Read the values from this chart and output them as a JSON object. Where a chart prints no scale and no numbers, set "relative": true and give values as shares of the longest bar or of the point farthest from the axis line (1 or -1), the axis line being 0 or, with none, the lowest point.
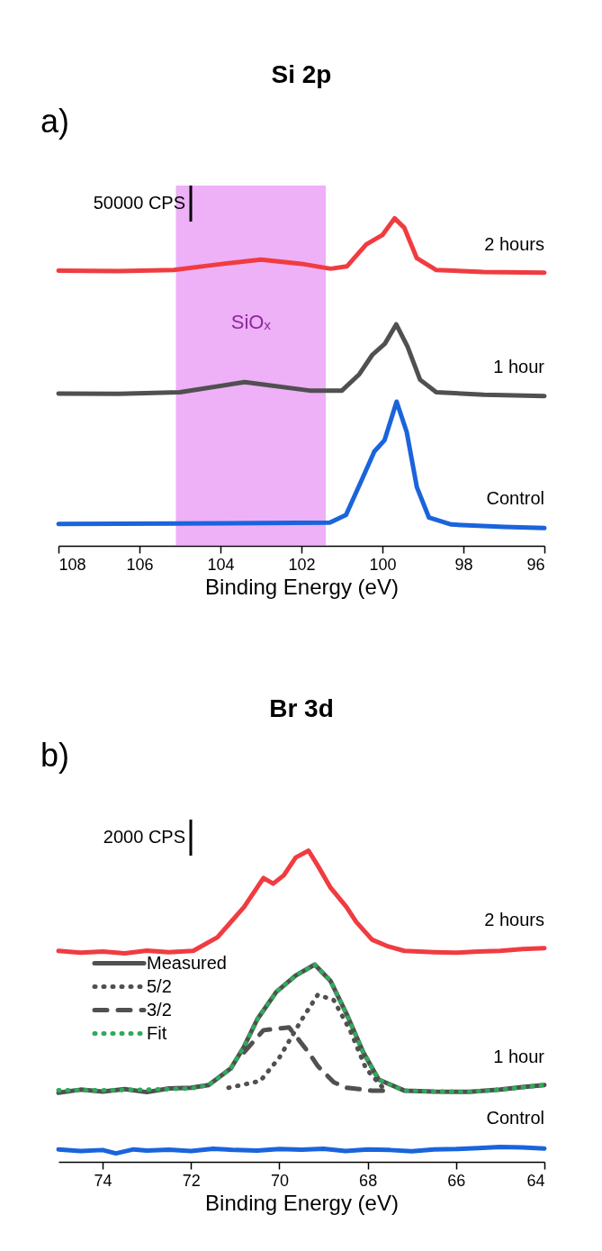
{
  "chart_data": [
    {
      "type": "line",
      "title": "Si 2p",
      "xlabel": "Binding Energy (eV)",
      "relative": true,
      "xlim": [
        108,
        96
      ],
      "xticks": [
        108,
        106,
        104,
        102,
        100,
        98,
        96
      ],
      "tick_labels": "x",
      "grid": false,
      "legend": false,
      "line_style": "solid",
      "annotations": [
        "a)",
        "50000 CPS",
        "2 hours",
        "1 hour",
        "Control"
      ],
      "bands": [
        {
          "axis": "x",
          "from": 105.1,
          "to": 101.4,
          "label": "SiOₓ",
          "color": "#e27cf2"
        }
      ],
      "series": [
        {
          "color": "#f03c40",
          "x": [
            108,
            106.5,
            105.15,
            104.2,
            103.0,
            102.0,
            101.28,
            100.88,
            100.4,
            100.0,
            99.7,
            99.46,
            99.15,
            98.67,
            97.5,
            96
          ],
          "values": [
            0.84,
            0.839,
            0.842,
            0.857,
            0.874,
            0.861,
            0.846,
            0.853,
            0.92,
            0.949,
            1.0,
            0.971,
            0.878,
            0.842,
            0.836,
            0.834
          ]
        },
        {
          "color": "#505050",
          "x": [
            108,
            106.5,
            105.0,
            103.4,
            101.8,
            101.0,
            100.57,
            100.25,
            99.94,
            99.66,
            99.38,
            99.07,
            98.67,
            97.5,
            96
          ],
          "values": [
            0.465,
            0.464,
            0.469,
            0.5,
            0.474,
            0.474,
            0.524,
            0.583,
            0.617,
            0.676,
            0.608,
            0.507,
            0.469,
            0.461,
            0.457
          ]
        },
        {
          "color": "#1a64dc",
          "x": [
            108,
            105,
            101.3,
            100.9,
            100.5,
            100.2,
            99.95,
            99.65,
            99.4,
            99.15,
            98.85,
            98.3,
            97,
            96
          ],
          "values": [
            0.067,
            0.068,
            0.071,
            0.094,
            0.204,
            0.288,
            0.322,
            0.44,
            0.347,
            0.179,
            0.086,
            0.065,
            0.058,
            0.054
          ]
        }
      ]
    },
    {
      "type": "line",
      "title": "Br 3d",
      "xlabel": "Binding Energy (eV)",
      "relative": true,
      "xlim": [
        75,
        64
      ],
      "xticks": [
        74,
        72,
        70,
        68,
        66,
        64
      ],
      "tick_labels": "x",
      "grid": false,
      "legend": "left",
      "annotations": [
        "b)",
        "2000 CPS",
        "2 hours",
        "1 hour",
        "Control"
      ],
      "series": [
        {
          "color": "#f03c40",
          "line_style": "solid",
          "x": [
            75,
            74.5,
            74,
            73.5,
            73,
            72.5,
            71.95,
            71.4,
            70.8,
            70.36,
            70.14,
            69.9,
            69.63,
            69.34,
            69.13,
            68.84,
            68.48,
            68.26,
            67.9,
            67.53,
            67.17,
            66.5,
            66,
            65.5,
            65,
            64.5,
            64
          ],
          "values": [
            0.678,
            0.672,
            0.676,
            0.67,
            0.679,
            0.674,
            0.678,
            0.722,
            0.819,
            0.912,
            0.894,
            0.921,
            0.978,
            1.0,
            0.952,
            0.881,
            0.819,
            0.771,
            0.714,
            0.692,
            0.678,
            0.674,
            0.672,
            0.676,
            0.678,
            0.684,
            0.687
          ]
        },
        {
          "name": "Measured",
          "color": "#505050",
          "line_style": "solid",
          "x": [
            75,
            74.5,
            74,
            73.5,
            73,
            72.5,
            72,
            71.6,
            71.1,
            70.8,
            70.5,
            70.07,
            69.63,
            69.2,
            68.84,
            68.48,
            68.1,
            67.75,
            67.17,
            66.5,
            65.7,
            65,
            64.5,
            64
          ],
          "values": [
            0.222,
            0.232,
            0.226,
            0.234,
            0.224,
            0.236,
            0.238,
            0.247,
            0.3,
            0.37,
            0.458,
            0.546,
            0.599,
            0.634,
            0.581,
            0.476,
            0.352,
            0.264,
            0.229,
            0.226,
            0.225,
            0.232,
            0.24,
            0.247
          ]
        },
        {
          "name": "5/2",
          "color": "#505050",
          "line_style": "dotted",
          "x": [
            71.15,
            70.43,
            70.0,
            69.49,
            69.13,
            68.77,
            68.4,
            68.04,
            67.6
          ],
          "values": [
            0.238,
            0.26,
            0.335,
            0.458,
            0.537,
            0.52,
            0.423,
            0.3,
            0.229
          ]
        },
        {
          "name": "3/2",
          "color": "#505050",
          "line_style": "dashed",
          "x": [
            70.8,
            70.36,
            69.78,
            69.34,
            69.13,
            68.77,
            68.48,
            67.9,
            67.6
          ],
          "values": [
            0.352,
            0.423,
            0.432,
            0.352,
            0.308,
            0.256,
            0.238,
            0.229,
            0.229
          ]
        },
        {
          "name": "Fit",
          "color": "#2eab5a",
          "line_style": "dotted",
          "x": [
            75,
            74,
            73,
            72,
            71.6,
            71.1,
            70.8,
            70.5,
            70.07,
            69.63,
            69.2,
            68.84,
            68.48,
            68.1,
            67.75,
            67.17,
            66.5,
            65.7,
            65,
            64
          ],
          "values": [
            0.23,
            0.23,
            0.232,
            0.236,
            0.247,
            0.3,
            0.37,
            0.458,
            0.546,
            0.599,
            0.634,
            0.581,
            0.476,
            0.352,
            0.264,
            0.229,
            0.226,
            0.225,
            0.232,
            0.247
          ]
        },
        {
          "color": "#1a64dc",
          "line_style": "solid",
          "x": [
            75,
            74.5,
            74,
            73.7,
            73.3,
            73,
            72.5,
            72,
            71.5,
            71,
            70.5,
            70,
            69.5,
            69,
            68.5,
            68,
            67.5,
            67,
            66.5,
            66,
            65.5,
            65,
            64.5,
            64
          ],
          "values": [
            0.04,
            0.035,
            0.038,
            0.027,
            0.04,
            0.036,
            0.039,
            0.035,
            0.042,
            0.038,
            0.036,
            0.041,
            0.039,
            0.042,
            0.035,
            0.04,
            0.038,
            0.034,
            0.04,
            0.041,
            0.044,
            0.048,
            0.046,
            0.043
          ]
        }
      ]
    }
  ]
}
